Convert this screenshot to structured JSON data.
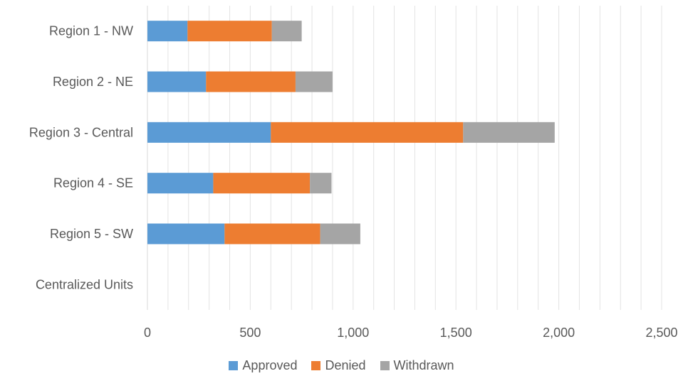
{
  "chart_data": {
    "type": "bar",
    "orientation": "horizontal",
    "stacked": true,
    "categories": [
      "Region 1 - NW",
      "Region 2 - NE",
      "Region 3 - Central",
      "Region 4 - SE",
      "Region 5 - SW",
      "Centralized Units"
    ],
    "series": [
      {
        "name": "Approved",
        "color": "#5B9BD5",
        "values": [
          195,
          285,
          600,
          320,
          375,
          0
        ]
      },
      {
        "name": "Denied",
        "color": "#ED7D31",
        "values": [
          410,
          435,
          935,
          470,
          465,
          0
        ]
      },
      {
        "name": "Withdrawn",
        "color": "#A5A5A5",
        "values": [
          145,
          180,
          445,
          105,
          195,
          0
        ]
      }
    ],
    "xlim": [
      0,
      2500
    ],
    "xticks": [
      0,
      500,
      1000,
      1500,
      2000,
      2500
    ],
    "xtick_labels": [
      "0",
      "500",
      "1,000",
      "1,500",
      "2,000",
      "2,500"
    ],
    "minor_gridline_step": 100,
    "grid": true,
    "legend_position": "bottom",
    "title": "",
    "xlabel": "",
    "ylabel": ""
  }
}
